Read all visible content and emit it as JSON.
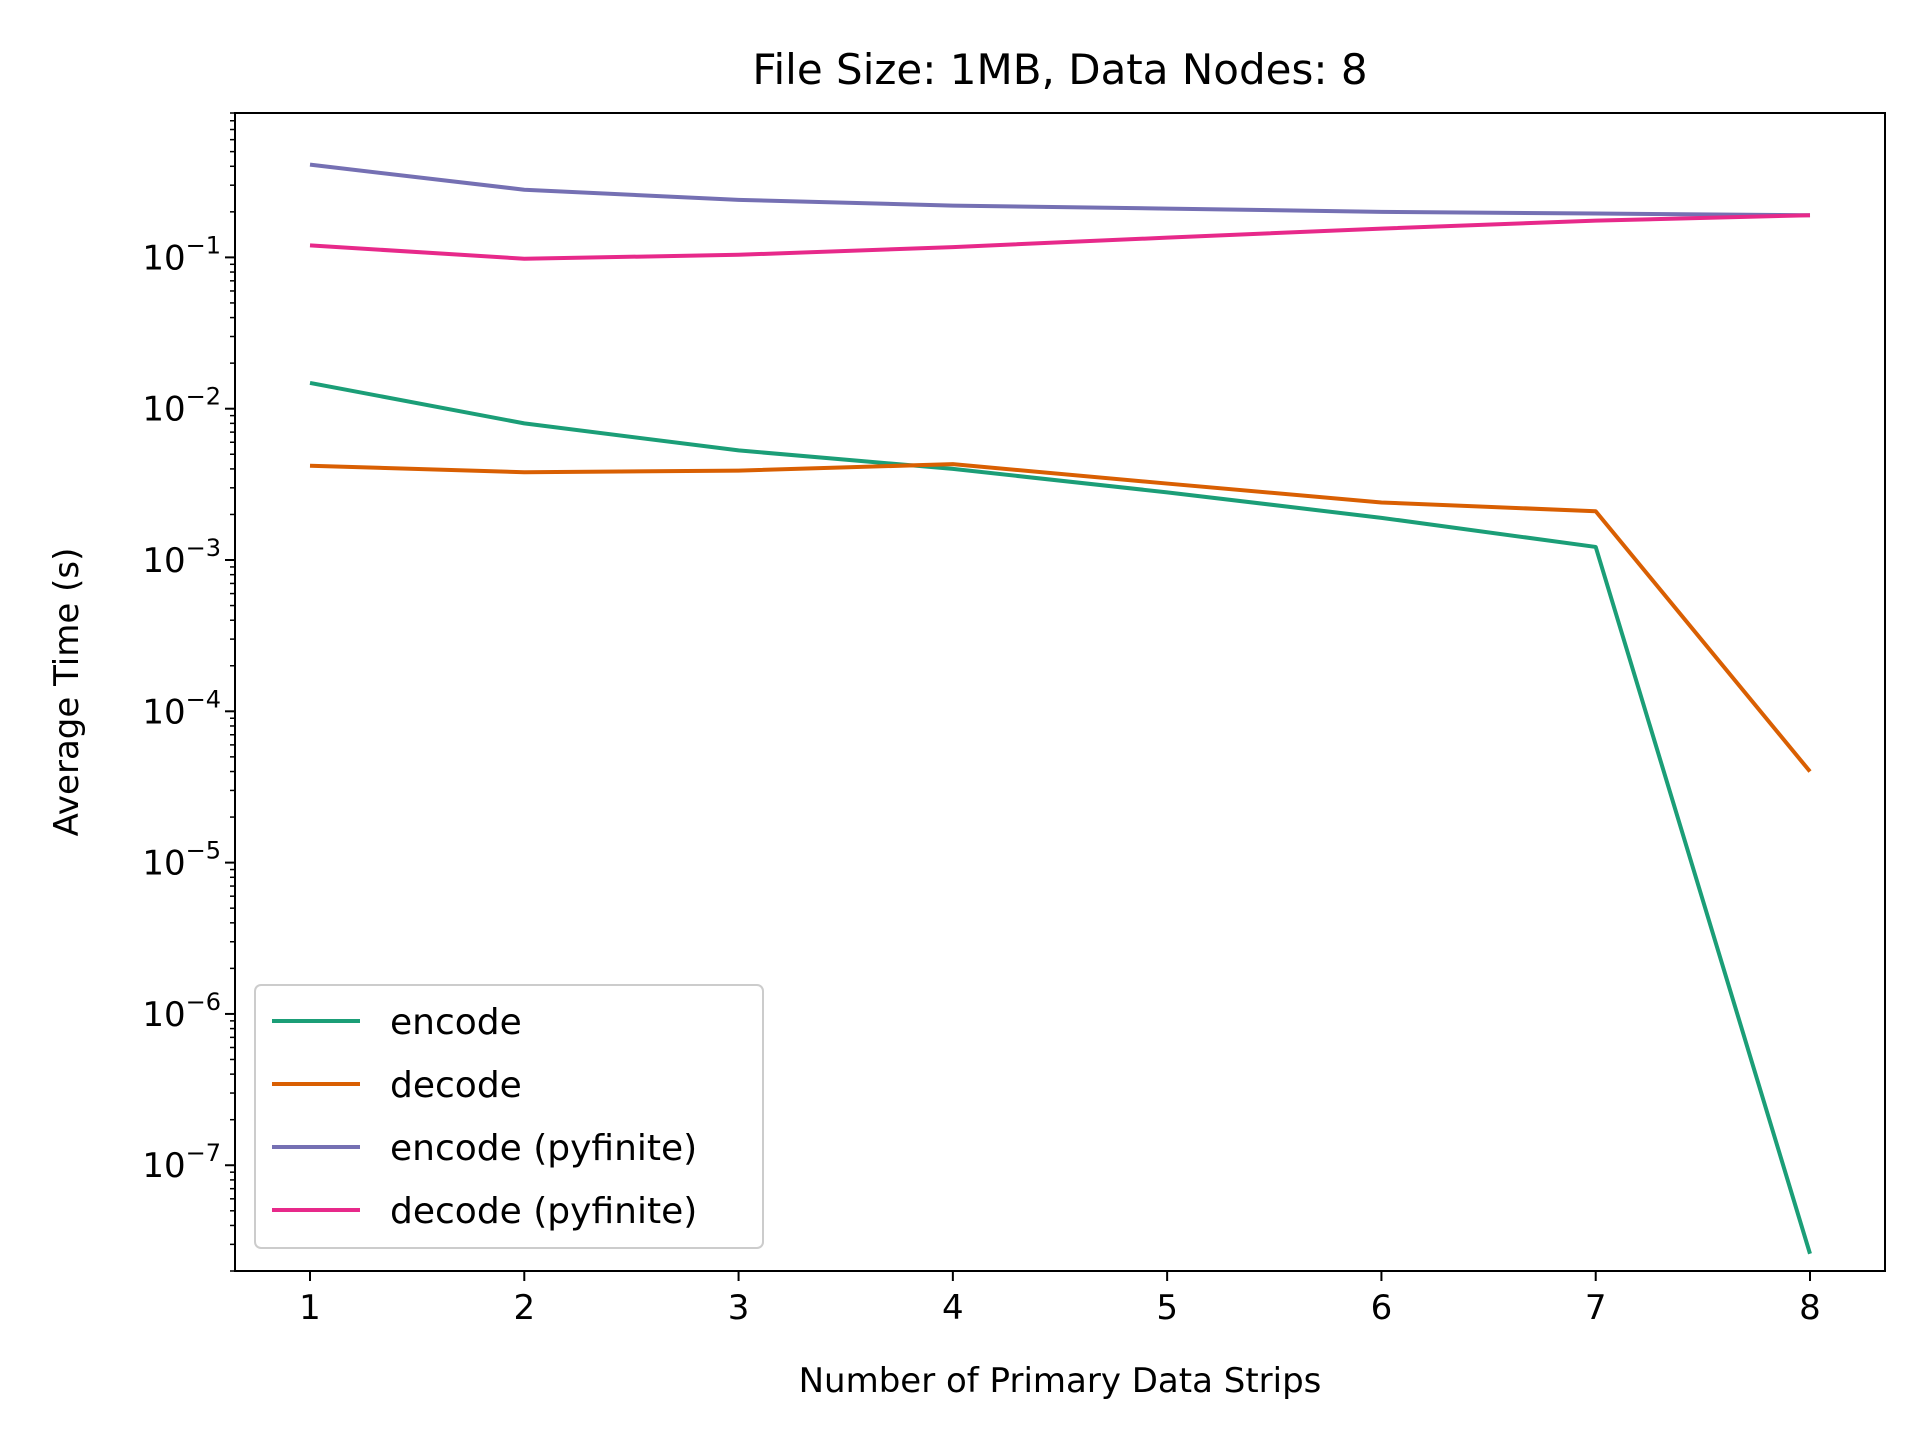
{
  "chart_data": {
    "type": "line",
    "title": "File Size: 1MB, Data Nodes: 8",
    "xlabel": "Number of Primary Data Strips",
    "ylabel": "Average Time (s)",
    "yscale": "log",
    "xlim": [
      0.65,
      8.35
    ],
    "ylim": [
      2e-08,
      0.9
    ],
    "x_ticks": [
      1,
      2,
      3,
      4,
      5,
      6,
      7,
      8
    ],
    "y_ticks": [
      {
        "value": 1e-07,
        "base": "10",
        "exp": "−7"
      },
      {
        "value": 1e-06,
        "base": "10",
        "exp": "−6"
      },
      {
        "value": 1e-05,
        "base": "10",
        "exp": "−5"
      },
      {
        "value": 0.0001,
        "base": "10",
        "exp": "−4"
      },
      {
        "value": 0.001,
        "base": "10",
        "exp": "−3"
      },
      {
        "value": 0.01,
        "base": "10",
        "exp": "−2"
      },
      {
        "value": 0.1,
        "base": "10",
        "exp": "−1"
      }
    ],
    "grid": false,
    "legend_position": "lower-left",
    "x": [
      1,
      2,
      3,
      4,
      5,
      6,
      7,
      8
    ],
    "series": [
      {
        "name": "encode",
        "color": "#1b9e77",
        "values": [
          0.0148,
          0.008,
          0.0053,
          0.004,
          0.0028,
          0.0019,
          0.00122,
          2.6e-08
        ]
      },
      {
        "name": "decode",
        "color": "#d95f02",
        "values": [
          0.0042,
          0.0038,
          0.0039,
          0.0043,
          0.0032,
          0.0024,
          0.0021,
          4e-05
        ]
      },
      {
        "name": "encode (pyfinite)",
        "color": "#7570b3",
        "values": [
          0.41,
          0.28,
          0.24,
          0.22,
          0.21,
          0.2,
          0.195,
          0.19
        ]
      },
      {
        "name": "decode (pyfinite)",
        "color": "#e7298a",
        "values": [
          0.12,
          0.098,
          0.104,
          0.117,
          0.135,
          0.155,
          0.175,
          0.19
        ]
      }
    ]
  }
}
